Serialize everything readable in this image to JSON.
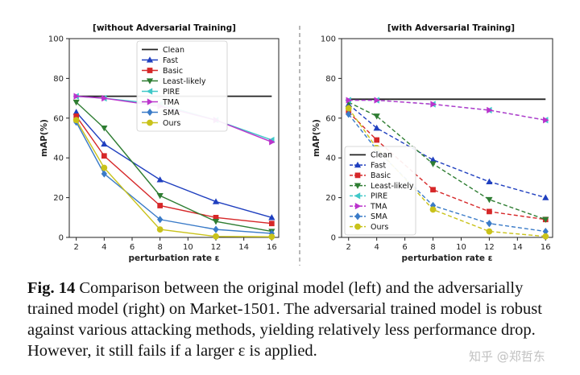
{
  "chart_data": [
    {
      "type": "line",
      "title": "[without Adversarial Training]",
      "xlabel": "perturbation rate ε",
      "ylabel": "mAP(%)",
      "xlim": [
        1.5,
        16.5
      ],
      "ylim": [
        0,
        100
      ],
      "xticks": [
        2,
        4,
        6,
        8,
        10,
        12,
        14,
        16
      ],
      "yticks": [
        0,
        20,
        40,
        60,
        80,
        100
      ],
      "legend_position": "upper-center",
      "line_style": "solid",
      "x": [
        2,
        4,
        8,
        12,
        16
      ],
      "series": [
        {
          "name": "Clean",
          "color": "#222222",
          "marker": "none",
          "values": [
            71,
            71,
            71,
            71,
            71
          ]
        },
        {
          "name": "Fast",
          "color": "#1f3fbf",
          "marker": "triangle-up",
          "values": [
            63,
            47,
            29,
            18,
            10
          ]
        },
        {
          "name": "Basic",
          "color": "#d62728",
          "marker": "square",
          "values": [
            61,
            41,
            16,
            10,
            7
          ]
        },
        {
          "name": "Least-likely",
          "color": "#2e7d32",
          "marker": "triangle-down",
          "values": [
            68,
            55,
            21,
            8,
            3
          ]
        },
        {
          "name": "PIRE",
          "color": "#3fc8c8",
          "marker": "triangle-left",
          "values": [
            71,
            70,
            67,
            59,
            49
          ]
        },
        {
          "name": "TMA",
          "color": "#bb33cc",
          "marker": "triangle-right",
          "values": [
            71,
            70,
            66,
            59,
            48
          ]
        },
        {
          "name": "SMA",
          "color": "#3a7bc8",
          "marker": "diamond",
          "values": [
            58,
            32,
            9,
            4,
            2
          ]
        },
        {
          "name": "Ours",
          "color": "#c9c21a",
          "marker": "circle",
          "values": [
            59,
            35,
            4,
            0.5,
            0.3
          ]
        }
      ]
    },
    {
      "type": "line",
      "title": "[with Adversarial Training]",
      "xlabel": "perturbation rate ε",
      "ylabel": "mAP(%)",
      "xlim": [
        1.5,
        16.5
      ],
      "ylim": [
        0,
        100
      ],
      "xticks": [
        2,
        4,
        6,
        8,
        10,
        12,
        14,
        16
      ],
      "yticks": [
        0,
        20,
        40,
        60,
        80,
        100
      ],
      "legend_position": "lower-left",
      "line_style": "dashed",
      "x": [
        2,
        4,
        8,
        12,
        16
      ],
      "series": [
        {
          "name": "Clean",
          "color": "#222222",
          "marker": "none",
          "values": [
            69.5,
            69.5,
            69.5,
            69.5,
            69.5
          ]
        },
        {
          "name": "Fast",
          "color": "#1f3fbf",
          "marker": "triangle-up",
          "values": [
            67,
            55,
            39,
            28,
            20
          ]
        },
        {
          "name": "Basic",
          "color": "#d62728",
          "marker": "square",
          "values": [
            63,
            49,
            24,
            13,
            9
          ]
        },
        {
          "name": "Least-likely",
          "color": "#2e7d32",
          "marker": "triangle-down",
          "values": [
            68,
            61,
            37,
            19,
            9
          ]
        },
        {
          "name": "PIRE",
          "color": "#3fc8c8",
          "marker": "triangle-left",
          "values": [
            69,
            69,
            67,
            64,
            59
          ]
        },
        {
          "name": "TMA",
          "color": "#bb33cc",
          "marker": "triangle-right",
          "values": [
            69,
            69,
            67,
            64,
            59
          ]
        },
        {
          "name": "SMA",
          "color": "#3a7bc8",
          "marker": "diamond",
          "values": [
            62,
            44,
            16,
            7,
            3
          ]
        },
        {
          "name": "Ours",
          "color": "#c9c21a",
          "marker": "circle",
          "values": [
            65,
            45,
            14,
            3,
            0.5
          ]
        }
      ]
    }
  ],
  "caption": {
    "label": "Fig. 14",
    "text": "Comparison between the original model (left) and the adversarially trained model (right) on Market-1501. The adversarial trained model is robust against various attacking methods, yielding relatively less performance drop. However, it still fails if a larger ε is applied."
  },
  "watermark": "知乎 @郑哲东"
}
